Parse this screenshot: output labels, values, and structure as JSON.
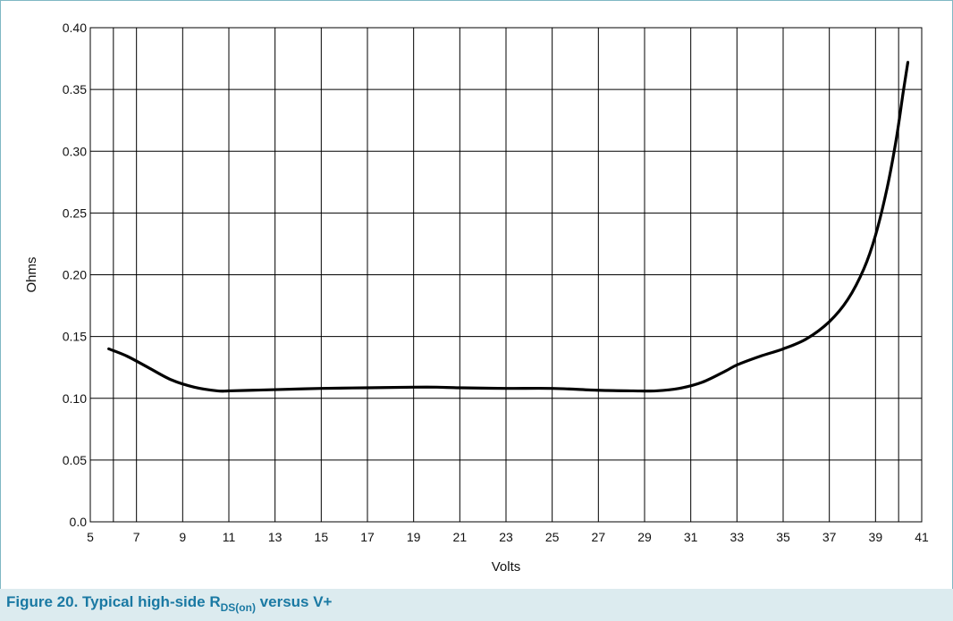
{
  "caption": {
    "prefix": "Figure 20.  Typical high-side R",
    "subscript": "DS(on)",
    "suffix": " versus V+"
  },
  "chart_data": {
    "type": "line",
    "title": "",
    "xlabel": "Volts",
    "ylabel": "Ohms",
    "xlim": [
      5,
      41
    ],
    "ylim": [
      0,
      0.4
    ],
    "x_ticks": [
      5,
      7,
      9,
      11,
      13,
      15,
      17,
      19,
      21,
      23,
      25,
      27,
      29,
      31,
      33,
      35,
      37,
      39,
      41
    ],
    "y_ticks": [
      0,
      0.05,
      0.1,
      0.15,
      0.2,
      0.25,
      0.3,
      0.35,
      0.4
    ],
    "y_tick_labels": [
      "0.0",
      "0.05",
      "0.10",
      "0.15",
      "0.20",
      "0.25",
      "0.30",
      "0.35",
      "0.40"
    ],
    "x_gridlines": [
      6,
      7,
      9,
      11,
      13,
      15,
      17,
      19,
      21,
      23,
      25,
      27,
      29,
      31,
      33,
      35,
      37,
      39,
      40,
      41
    ],
    "grid": true,
    "line_color": "#000000",
    "series": [
      {
        "x": [
          5.8,
          6.6,
          7.5,
          8.5,
          9.5,
          10.5,
          11.0,
          12.0,
          13.0,
          15.0,
          17.0,
          19.0,
          20.0,
          21.0,
          23.0,
          25.0,
          27.0,
          28.5,
          29.5,
          30.5,
          31.5,
          32.5,
          33.0,
          34.0,
          35.0,
          36.0,
          37.0,
          37.8,
          38.5,
          39.0,
          39.5,
          39.9,
          40.2,
          40.4
        ],
        "y": [
          0.14,
          0.134,
          0.125,
          0.115,
          0.109,
          0.106,
          0.106,
          0.1065,
          0.107,
          0.108,
          0.1085,
          0.109,
          0.109,
          0.1085,
          0.108,
          0.108,
          0.1065,
          0.106,
          0.106,
          0.108,
          0.113,
          0.122,
          0.127,
          0.134,
          0.14,
          0.148,
          0.162,
          0.18,
          0.205,
          0.232,
          0.27,
          0.31,
          0.348,
          0.372
        ]
      }
    ]
  }
}
